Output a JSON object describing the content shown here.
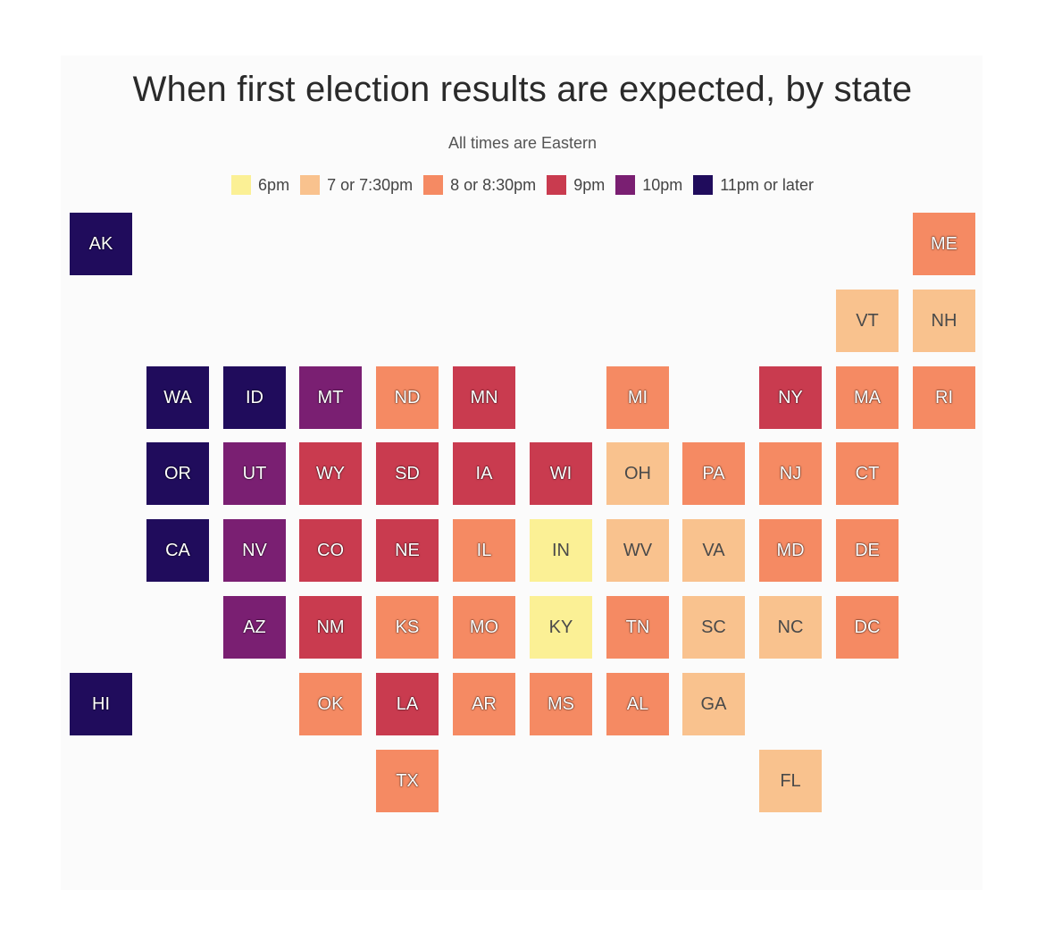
{
  "title": "When first election results are expected, by state",
  "subtitle": "All times are Eastern",
  "legend": [
    {
      "key": "t6",
      "label": "6pm",
      "color": "#fbf095"
    },
    {
      "key": "t7",
      "label": "7 or 7:30pm",
      "color": "#f9c28e"
    },
    {
      "key": "t8",
      "label": "8 or 8:30pm",
      "color": "#f58a63"
    },
    {
      "key": "t9",
      "label": "9pm",
      "color": "#c93b4f"
    },
    {
      "key": "t10",
      "label": "10pm",
      "color": "#7a1f72"
    },
    {
      "key": "t11",
      "label": "11pm or later",
      "color": "#200c5c"
    }
  ],
  "states": [
    {
      "abbr": "AK",
      "time": "t11",
      "col": 0,
      "row": 0
    },
    {
      "abbr": "ME",
      "time": "t8",
      "col": 11,
      "row": 0
    },
    {
      "abbr": "VT",
      "time": "t7",
      "col": 10,
      "row": 1
    },
    {
      "abbr": "NH",
      "time": "t7",
      "col": 11,
      "row": 1
    },
    {
      "abbr": "WA",
      "time": "t11",
      "col": 1,
      "row": 2
    },
    {
      "abbr": "ID",
      "time": "t11",
      "col": 2,
      "row": 2
    },
    {
      "abbr": "MT",
      "time": "t10",
      "col": 3,
      "row": 2
    },
    {
      "abbr": "ND",
      "time": "t8",
      "col": 4,
      "row": 2
    },
    {
      "abbr": "MN",
      "time": "t9",
      "col": 5,
      "row": 2
    },
    {
      "abbr": "MI",
      "time": "t8",
      "col": 7,
      "row": 2
    },
    {
      "abbr": "NY",
      "time": "t9",
      "col": 9,
      "row": 2
    },
    {
      "abbr": "MA",
      "time": "t8",
      "col": 10,
      "row": 2
    },
    {
      "abbr": "RI",
      "time": "t8",
      "col": 11,
      "row": 2
    },
    {
      "abbr": "OR",
      "time": "t11",
      "col": 1,
      "row": 3
    },
    {
      "abbr": "UT",
      "time": "t10",
      "col": 2,
      "row": 3
    },
    {
      "abbr": "WY",
      "time": "t9",
      "col": 3,
      "row": 3
    },
    {
      "abbr": "SD",
      "time": "t9",
      "col": 4,
      "row": 3
    },
    {
      "abbr": "IA",
      "time": "t9",
      "col": 5,
      "row": 3
    },
    {
      "abbr": "WI",
      "time": "t9",
      "col": 6,
      "row": 3
    },
    {
      "abbr": "OH",
      "time": "t7",
      "col": 7,
      "row": 3
    },
    {
      "abbr": "PA",
      "time": "t8",
      "col": 8,
      "row": 3
    },
    {
      "abbr": "NJ",
      "time": "t8",
      "col": 9,
      "row": 3
    },
    {
      "abbr": "CT",
      "time": "t8",
      "col": 10,
      "row": 3
    },
    {
      "abbr": "CA",
      "time": "t11",
      "col": 1,
      "row": 4
    },
    {
      "abbr": "NV",
      "time": "t10",
      "col": 2,
      "row": 4
    },
    {
      "abbr": "CO",
      "time": "t9",
      "col": 3,
      "row": 4
    },
    {
      "abbr": "NE",
      "time": "t9",
      "col": 4,
      "row": 4
    },
    {
      "abbr": "IL",
      "time": "t8",
      "col": 5,
      "row": 4
    },
    {
      "abbr": "IN",
      "time": "t6",
      "col": 6,
      "row": 4
    },
    {
      "abbr": "WV",
      "time": "t7",
      "col": 7,
      "row": 4
    },
    {
      "abbr": "VA",
      "time": "t7",
      "col": 8,
      "row": 4
    },
    {
      "abbr": "MD",
      "time": "t8",
      "col": 9,
      "row": 4
    },
    {
      "abbr": "DE",
      "time": "t8",
      "col": 10,
      "row": 4
    },
    {
      "abbr": "AZ",
      "time": "t10",
      "col": 2,
      "row": 5
    },
    {
      "abbr": "NM",
      "time": "t9",
      "col": 3,
      "row": 5
    },
    {
      "abbr": "KS",
      "time": "t8",
      "col": 4,
      "row": 5
    },
    {
      "abbr": "MO",
      "time": "t8",
      "col": 5,
      "row": 5
    },
    {
      "abbr": "KY",
      "time": "t6",
      "col": 6,
      "row": 5
    },
    {
      "abbr": "TN",
      "time": "t8",
      "col": 7,
      "row": 5
    },
    {
      "abbr": "SC",
      "time": "t7",
      "col": 8,
      "row": 5
    },
    {
      "abbr": "NC",
      "time": "t7",
      "col": 9,
      "row": 5
    },
    {
      "abbr": "DC",
      "time": "t8",
      "col": 10,
      "row": 5
    },
    {
      "abbr": "HI",
      "time": "t11",
      "col": 0,
      "row": 6
    },
    {
      "abbr": "OK",
      "time": "t8",
      "col": 3,
      "row": 6
    },
    {
      "abbr": "LA",
      "time": "t9",
      "col": 4,
      "row": 6
    },
    {
      "abbr": "AR",
      "time": "t8",
      "col": 5,
      "row": 6
    },
    {
      "abbr": "MS",
      "time": "t8",
      "col": 6,
      "row": 6
    },
    {
      "abbr": "AL",
      "time": "t8",
      "col": 7,
      "row": 6
    },
    {
      "abbr": "GA",
      "time": "t7",
      "col": 8,
      "row": 6
    },
    {
      "abbr": "TX",
      "time": "t8",
      "col": 4,
      "row": 7
    },
    {
      "abbr": "FL",
      "time": "t7",
      "col": 9,
      "row": 7
    }
  ]
}
